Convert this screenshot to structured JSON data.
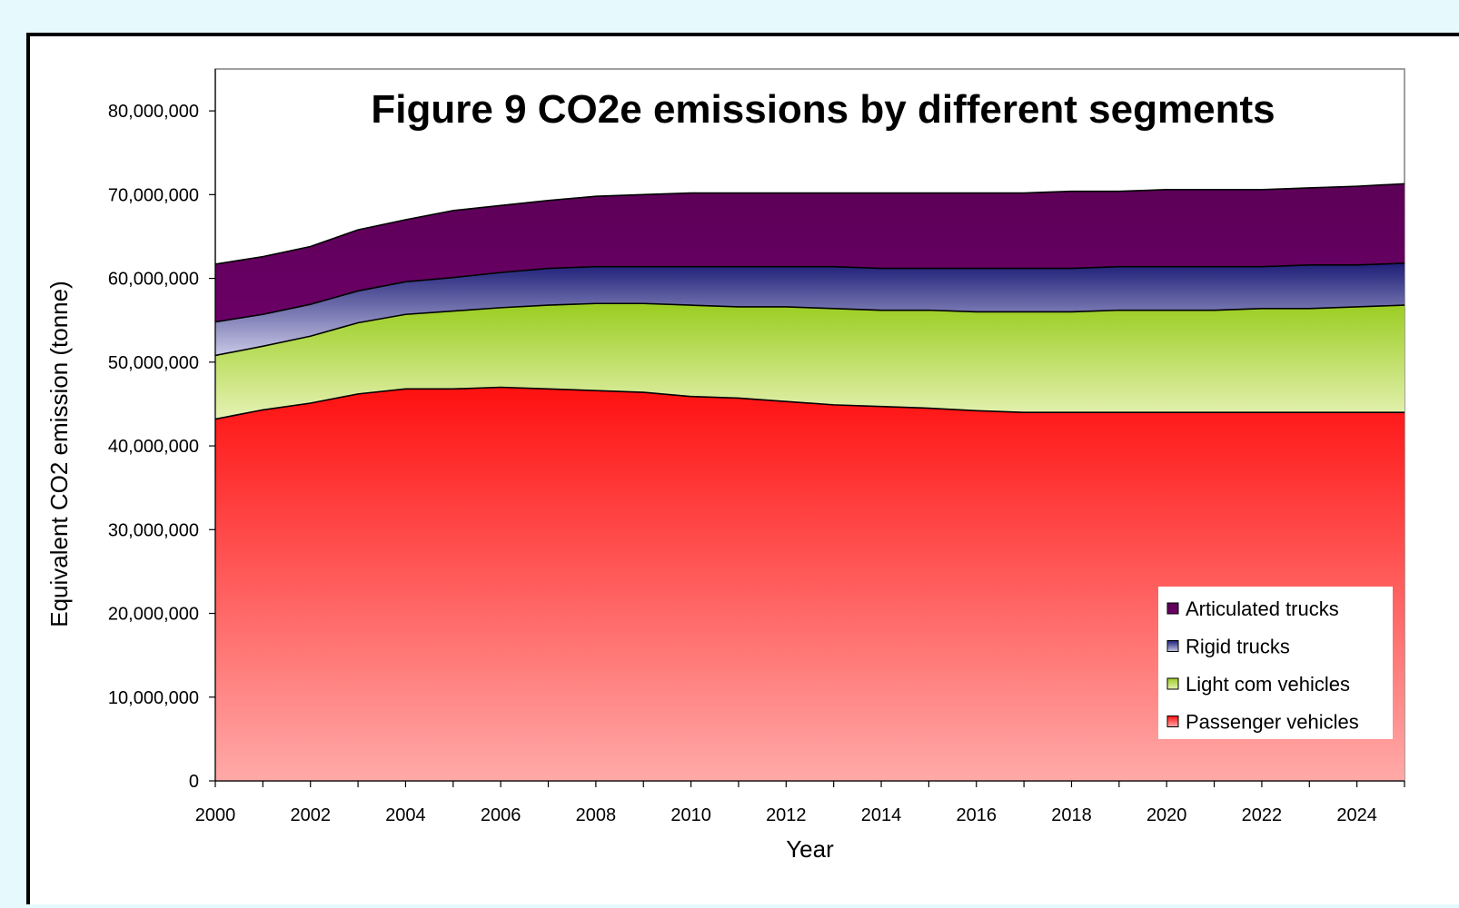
{
  "chart_data": {
    "type": "area",
    "stacked": true,
    "title": "Figure 9 CO2e emissions by different segments",
    "xlabel": "Year",
    "ylabel": "Equivalent CO2 emission (tonne)",
    "xlim": [
      2000,
      2025
    ],
    "ylim": [
      0,
      85000000
    ],
    "x_ticks": [
      "2000",
      "2002",
      "2004",
      "2006",
      "2008",
      "2010",
      "2012",
      "2014",
      "2016",
      "2018",
      "2020",
      "2022",
      "2024"
    ],
    "y_ticks": [
      "0",
      "10,000,000",
      "20,000,000",
      "30,000,000",
      "40,000,000",
      "50,000,000",
      "60,000,000",
      "70,000,000",
      "80,000,000"
    ],
    "legend_position": "bottom-right",
    "x": [
      2000,
      2001,
      2002,
      2003,
      2004,
      2005,
      2006,
      2007,
      2008,
      2009,
      2010,
      2011,
      2012,
      2013,
      2014,
      2015,
      2016,
      2017,
      2018,
      2019,
      2020,
      2021,
      2022,
      2023,
      2024,
      2025
    ],
    "series": [
      {
        "name": "Passenger vehicles",
        "color_top": "#ff1010",
        "color_bottom": "#ffaaa8",
        "values": [
          43200000,
          44300000,
          45100000,
          46200000,
          46800000,
          46800000,
          47000000,
          46800000,
          46600000,
          46400000,
          45900000,
          45700000,
          45300000,
          44900000,
          44700000,
          44500000,
          44200000,
          44000000,
          44000000,
          44000000,
          44000000,
          44000000,
          44000000,
          44000000,
          44000000,
          44000000
        ]
      },
      {
        "name": "Light com vehicles",
        "color_top": "#9acd20",
        "color_bottom": "#e6f2b4",
        "values": [
          7600000,
          7600000,
          8000000,
          8500000,
          8900000,
          9300000,
          9500000,
          10000000,
          10400000,
          10600000,
          10900000,
          10900000,
          11300000,
          11500000,
          11500000,
          11700000,
          11800000,
          12000000,
          12000000,
          12200000,
          12200000,
          12200000,
          12400000,
          12400000,
          12600000,
          12800000
        ]
      },
      {
        "name": "Rigid trucks",
        "color_top": "#1e1e78",
        "color_bottom": "#c8c8e6",
        "values": [
          4000000,
          3800000,
          3800000,
          3800000,
          3900000,
          4000000,
          4200000,
          4400000,
          4400000,
          4400000,
          4600000,
          4800000,
          4800000,
          5000000,
          5000000,
          5000000,
          5200000,
          5200000,
          5200000,
          5200000,
          5200000,
          5200000,
          5000000,
          5200000,
          5000000,
          5000000
        ]
      },
      {
        "name": "Articulated trucks",
        "color_top": "#5c0057",
        "color_bottom": "#6b0066",
        "values": [
          6900000,
          6900000,
          6900000,
          7300000,
          7400000,
          8000000,
          8000000,
          8100000,
          8400000,
          8600000,
          8800000,
          8800000,
          8800000,
          8800000,
          9000000,
          9000000,
          9000000,
          9000000,
          9200000,
          9000000,
          9200000,
          9200000,
          9200000,
          9200000,
          9400000,
          9500000
        ]
      }
    ]
  }
}
